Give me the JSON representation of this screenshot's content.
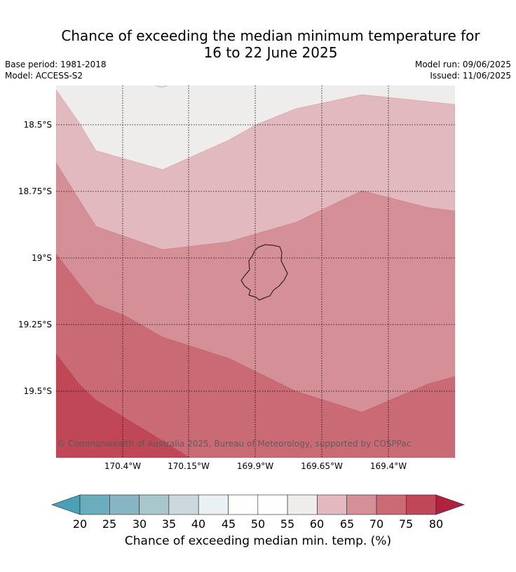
{
  "title_line1": "Chance of exceeding the median minimum temperature for",
  "title_line2": "16 to 22 June 2025",
  "base_period": "Base period: 1981-2018",
  "model": "Model: ACCESS-S2",
  "model_run": "Model run: 09/06/2025",
  "issued": "Issued: 11/06/2025",
  "lat_labels": [
    "18.5°S",
    "18.75°S",
    "19°S",
    "19.25°S",
    "19.5°S"
  ],
  "lon_labels": [
    "170.4°W",
    "170.15°W",
    "169.9°W",
    "169.65°W",
    "169.4°W"
  ],
  "copyright": "© Commonwealth of Australia 2025, Bureau of Meteorology, supported by COSPPac",
  "colorbar": {
    "title": "Chance of exceeding median min. temp. (%)",
    "ticks": [
      "20",
      "25",
      "30",
      "35",
      "40",
      "45",
      "50",
      "55",
      "60",
      "65",
      "70",
      "75",
      "80"
    ],
    "colors": {
      "below_20": "#4aa0b5",
      "20-25": "#6aaebe",
      "25-30": "#88b5c2",
      "30-35": "#a7c7cc",
      "35-40": "#cbd9de",
      "40-45": "#e9f1f2",
      "45-50": "#ffffff",
      "50-55": "#ffffff",
      "55-60": "#eeedeb",
      "60-65": "#e1b9be",
      "65-70": "#d58f97",
      "70-75": "#c96a74",
      "75-80": "#bf4756",
      "above_80": "#b22040"
    }
  }
}
